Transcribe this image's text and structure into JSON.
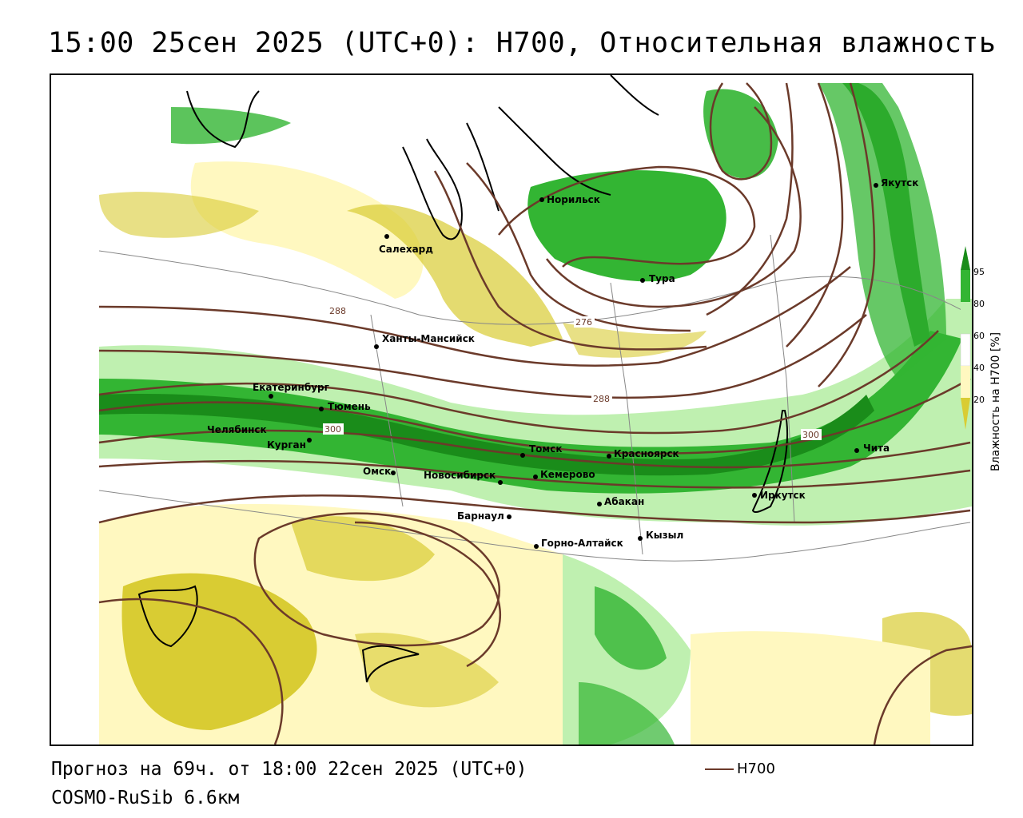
{
  "title": "15:00 25сен 2025 (UTC+0): H700, Относительная влажность",
  "footer": {
    "forecast": "Прогноз на 69ч. от 18:00 22сен 2025 (UTC+0)",
    "model": "COSMO-RuSib 6.6км",
    "line_legend": "H700"
  },
  "legend": {
    "title": "Влажность на H700 [%]",
    "ticks": [
      "95",
      "80",
      "60",
      "40",
      "20"
    ],
    "colors": {
      "c95": "#1a8c1a",
      "c80": "#33b533",
      "c60": "#bff0b0",
      "c40": "#fff8c0",
      "c20": "#d9cc33"
    }
  },
  "contour_labels": [
    "288",
    "276",
    "288",
    "300",
    "300"
  ],
  "cities": [
    {
      "name": "Салехард"
    },
    {
      "name": "Норильск"
    },
    {
      "name": "Тура"
    },
    {
      "name": "Якутск"
    },
    {
      "name": "Ханты-Мансийск"
    },
    {
      "name": "Екатеринбург"
    },
    {
      "name": "Тюмень"
    },
    {
      "name": "Челябинск"
    },
    {
      "name": "Курган"
    },
    {
      "name": "Омск"
    },
    {
      "name": "Новосибирск"
    },
    {
      "name": "Томск"
    },
    {
      "name": "Кемерово"
    },
    {
      "name": "Красноярск"
    },
    {
      "name": "Абакан"
    },
    {
      "name": "Барнаул"
    },
    {
      "name": "Горно-Алтайск"
    },
    {
      "name": "Кызыл"
    },
    {
      "name": "Иркутск"
    },
    {
      "name": "Чита"
    }
  ]
}
